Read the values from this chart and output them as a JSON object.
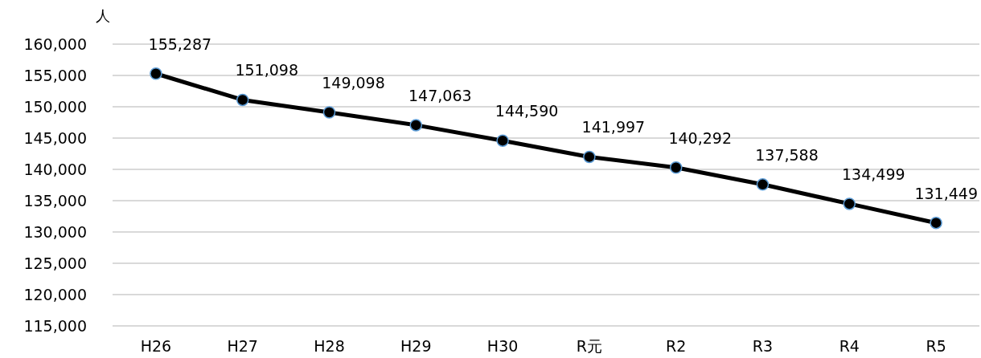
{
  "chart_data": {
    "type": "line",
    "ylabel": "人",
    "categories": [
      "H26",
      "H27",
      "H28",
      "H29",
      "H30",
      "R元",
      "R2",
      "R3",
      "R4",
      "R5"
    ],
    "series": [
      {
        "color": "#000000",
        "values": [
          155287,
          151098,
          149098,
          147063,
          144590,
          141997,
          140292,
          137588,
          134499,
          131449
        ],
        "value_labels": [
          "155,287",
          "151,098",
          "149,098",
          "147,063",
          "144,590",
          "141,997",
          "140,292",
          "137,588",
          "134,499",
          "131,449"
        ]
      }
    ],
    "ylim": [
      115000,
      160000
    ],
    "yticks": [
      {
        "value": 115000,
        "label": "115,000"
      },
      {
        "value": 120000,
        "label": "120,000"
      },
      {
        "value": 125000,
        "label": "125,000"
      },
      {
        "value": 130000,
        "label": "130,000"
      },
      {
        "value": 135000,
        "label": "135,000"
      },
      {
        "value": 140000,
        "label": "140,000"
      },
      {
        "value": 145000,
        "label": "145,000"
      },
      {
        "value": 150000,
        "label": "150,000"
      },
      {
        "value": 155000,
        "label": "155,000"
      },
      {
        "value": 160000,
        "label": "160,000"
      }
    ],
    "grid": "y",
    "marker": "circle",
    "line_style": "solid"
  }
}
